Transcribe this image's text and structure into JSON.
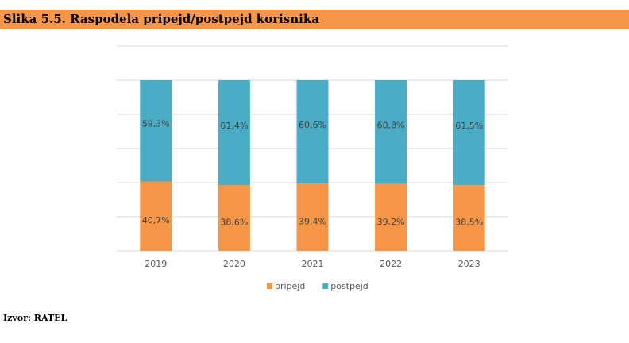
{
  "title": "Slika 5.5. Raspodela pripejd/postpejd korisnika",
  "source": "Izvor: RATEL",
  "chart_data": {
    "type": "bar",
    "stacked": true,
    "categories": [
      "2019",
      "2020",
      "2021",
      "2022",
      "2023"
    ],
    "series": [
      {
        "name": "pripejd",
        "values": [
          40.7,
          38.6,
          39.4,
          39.2,
          38.5
        ],
        "labels": [
          "40,7%",
          "38,6%",
          "39,4%",
          "39,2%",
          "38,5%"
        ],
        "color": "#f79646"
      },
      {
        "name": "postpejd",
        "values": [
          59.3,
          61.4,
          60.6,
          60.8,
          61.5
        ],
        "labels": [
          "59,3%",
          "61,4%",
          "60,6%",
          "60,8%",
          "61,5%"
        ],
        "color": "#4bacc6"
      }
    ],
    "ylim": [
      0,
      100
    ],
    "grid": true,
    "legend": "bottom"
  }
}
